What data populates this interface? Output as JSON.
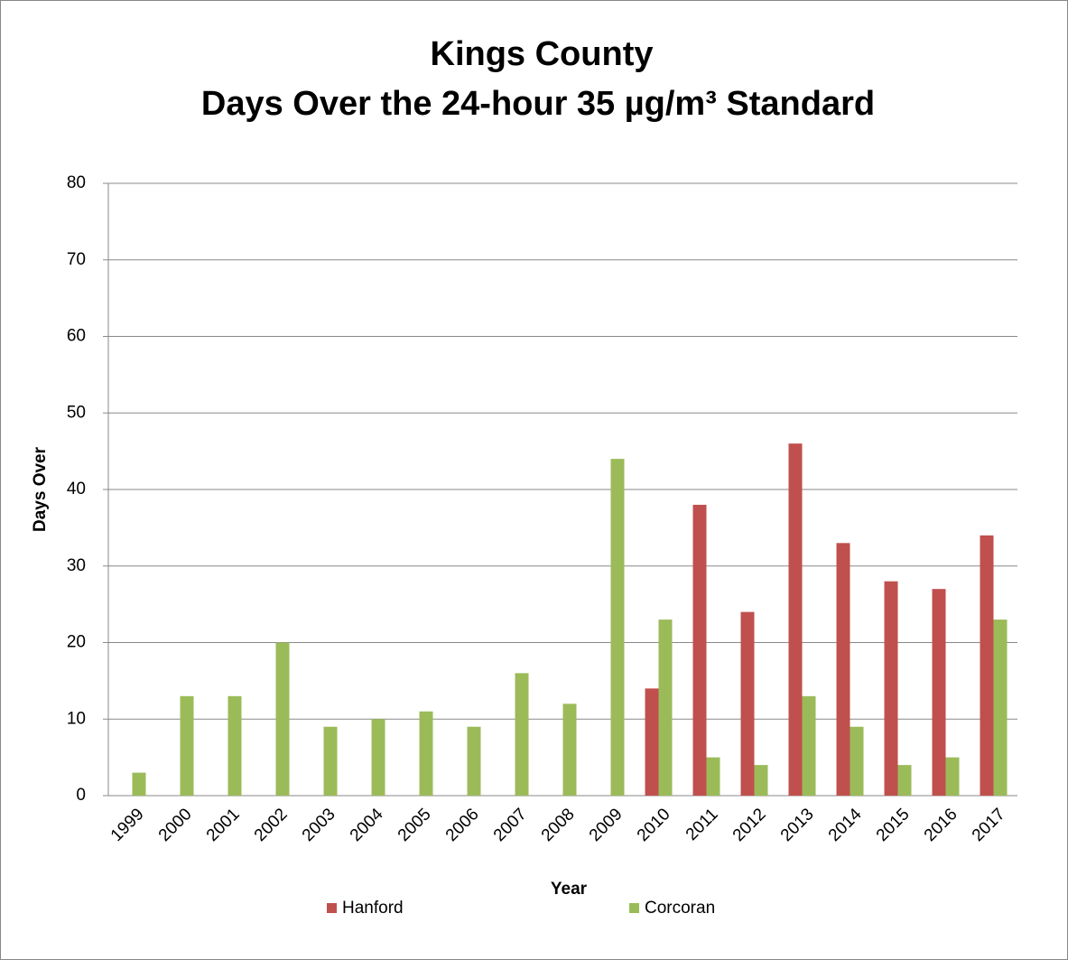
{
  "chart_data": {
    "type": "bar",
    "title": [
      "Kings County",
      "Days Over the 24-hour 35 µg/m³ Standard"
    ],
    "x_label": "Year",
    "y_label": "Days Over",
    "categories": [
      "1999",
      "2000",
      "2001",
      "2002",
      "2003",
      "2004",
      "2005",
      "2006",
      "2007",
      "2008",
      "2009",
      "2010",
      "2011",
      "2012",
      "2013",
      "2014",
      "2015",
      "2016",
      "2017"
    ],
    "series": [
      {
        "name": "Hanford",
        "color": "#c0504d",
        "values": [
          null,
          null,
          null,
          null,
          null,
          null,
          null,
          null,
          null,
          null,
          null,
          14,
          38,
          24,
          46,
          33,
          28,
          27,
          34
        ]
      },
      {
        "name": "Corcoran",
        "color": "#9bbb59",
        "values": [
          3,
          13,
          13,
          20,
          9,
          10,
          11,
          9,
          16,
          12,
          44,
          23,
          5,
          4,
          13,
          9,
          4,
          5,
          23
        ]
      }
    ],
    "ylim": [
      0,
      80
    ],
    "yticks": [
      0,
      10,
      20,
      30,
      40,
      50,
      60,
      70,
      80
    ],
    "grid": true,
    "legend": "bottom"
  }
}
